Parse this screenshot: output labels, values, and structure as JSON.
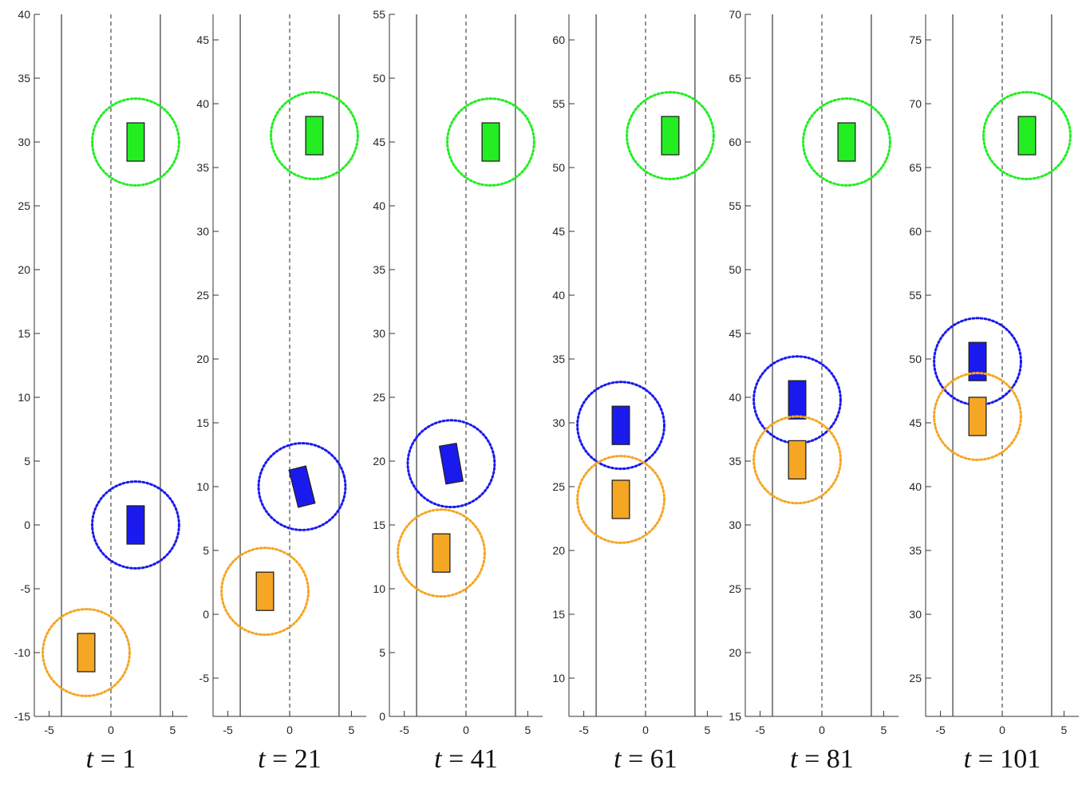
{
  "chart_data": [
    {
      "type": "scatter",
      "time_label": {
        "var": "t",
        "rest": " = 1"
      },
      "ylim": [
        -15,
        40
      ],
      "yticks": [
        -15,
        -10,
        -5,
        0,
        5,
        10,
        15,
        20,
        25,
        30,
        35,
        40
      ],
      "xlim": [
        -6.2,
        6.2
      ],
      "xticks": [
        -5,
        0,
        5
      ],
      "lane_boundaries": [
        -4,
        4
      ],
      "center_line": 0,
      "vehicles": [
        {
          "color": "#22ee22",
          "x": 2.0,
          "y": 30,
          "angle": 0
        },
        {
          "color": "#1a1aee",
          "x": 2.0,
          "y": 0,
          "angle": 0
        },
        {
          "color": "#f5a623",
          "x": -2.0,
          "y": -10,
          "angle": 0
        }
      ]
    },
    {
      "type": "scatter",
      "time_label": {
        "var": "t",
        "rest": " = 21"
      },
      "ylim": [
        -8,
        47
      ],
      "yticks": [
        -5,
        0,
        5,
        10,
        15,
        20,
        25,
        30,
        35,
        40,
        45
      ],
      "xlim": [
        -6.2,
        6.2
      ],
      "xticks": [
        -5,
        0,
        5
      ],
      "lane_boundaries": [
        -4,
        4
      ],
      "center_line": 0,
      "vehicles": [
        {
          "color": "#22ee22",
          "x": 2.0,
          "y": 37.5,
          "angle": 0
        },
        {
          "color": "#1a1aee",
          "x": 1.0,
          "y": 10,
          "angle": -14
        },
        {
          "color": "#f5a623",
          "x": -2.0,
          "y": 1.8,
          "angle": 0
        }
      ]
    },
    {
      "type": "scatter",
      "time_label": {
        "var": "t",
        "rest": " = 41"
      },
      "ylim": [
        0,
        55
      ],
      "yticks": [
        0,
        5,
        10,
        15,
        20,
        25,
        30,
        35,
        40,
        45,
        50,
        55
      ],
      "xlim": [
        -6.2,
        6.2
      ],
      "xticks": [
        -5,
        0,
        5
      ],
      "lane_boundaries": [
        -4,
        4
      ],
      "center_line": 0,
      "vehicles": [
        {
          "color": "#22ee22",
          "x": 2.0,
          "y": 45,
          "angle": 0
        },
        {
          "color": "#1a1aee",
          "x": -1.2,
          "y": 19.8,
          "angle": -10
        },
        {
          "color": "#f5a623",
          "x": -2.0,
          "y": 12.8,
          "angle": 0
        }
      ]
    },
    {
      "type": "scatter",
      "time_label": {
        "var": "t",
        "rest": " = 61"
      },
      "ylim": [
        7,
        62
      ],
      "yticks": [
        10,
        15,
        20,
        25,
        30,
        35,
        40,
        45,
        50,
        55,
        60
      ],
      "xlim": [
        -6.2,
        6.2
      ],
      "xticks": [
        -5,
        0,
        5
      ],
      "lane_boundaries": [
        -4,
        4
      ],
      "center_line": 0,
      "vehicles": [
        {
          "color": "#22ee22",
          "x": 2.0,
          "y": 52.5,
          "angle": 0
        },
        {
          "color": "#1a1aee",
          "x": -2.0,
          "y": 29.8,
          "angle": 0
        },
        {
          "color": "#f5a623",
          "x": -2.0,
          "y": 24.0,
          "angle": 0
        }
      ]
    },
    {
      "type": "scatter",
      "time_label": {
        "var": "t",
        "rest": " = 81"
      },
      "ylim": [
        15,
        70
      ],
      "yticks": [
        15,
        20,
        25,
        30,
        35,
        40,
        45,
        50,
        55,
        60,
        65,
        70
      ],
      "xlim": [
        -6.2,
        6.2
      ],
      "xticks": [
        -5,
        0,
        5
      ],
      "lane_boundaries": [
        -4,
        4
      ],
      "center_line": 0,
      "vehicles": [
        {
          "color": "#22ee22",
          "x": 2.0,
          "y": 60,
          "angle": 0
        },
        {
          "color": "#1a1aee",
          "x": -2.0,
          "y": 39.8,
          "angle": 0
        },
        {
          "color": "#f5a623",
          "x": -2.0,
          "y": 35.1,
          "angle": 0
        }
      ]
    },
    {
      "type": "scatter",
      "time_label": {
        "var": "t",
        "rest": " = 101"
      },
      "ylim": [
        22,
        77
      ],
      "yticks": [
        25,
        30,
        35,
        40,
        45,
        50,
        55,
        60,
        65,
        70,
        75
      ],
      "xlim": [
        -6.2,
        6.2
      ],
      "xticks": [
        -5,
        0,
        5
      ],
      "lane_boundaries": [
        -4,
        4
      ],
      "center_line": 0,
      "vehicles": [
        {
          "color": "#22ee22",
          "x": 2.0,
          "y": 67.5,
          "angle": 0
        },
        {
          "color": "#1a1aee",
          "x": -2.0,
          "y": 49.8,
          "angle": 0
        },
        {
          "color": "#f5a623",
          "x": -2.0,
          "y": 45.5,
          "angle": 0
        }
      ]
    }
  ]
}
